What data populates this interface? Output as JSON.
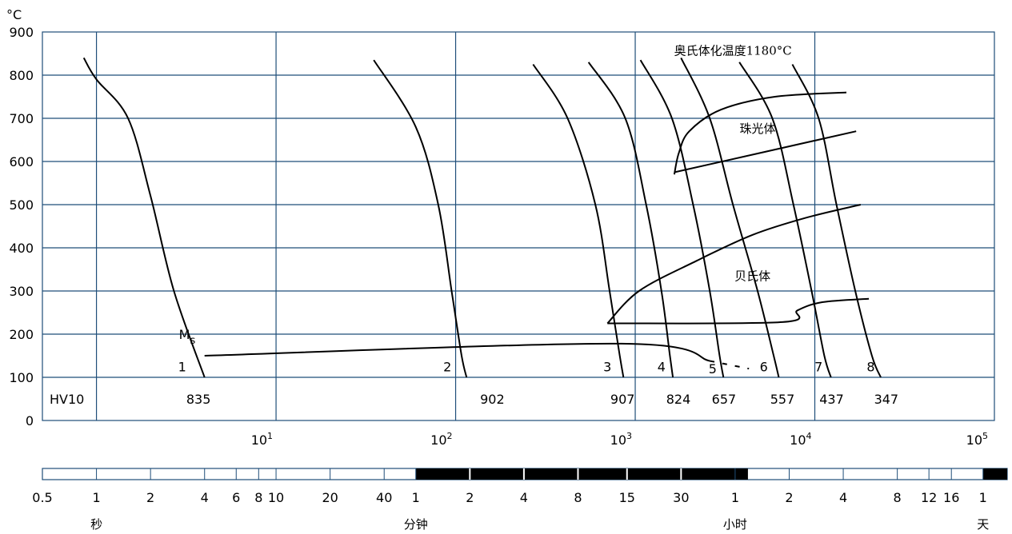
{
  "chart_data": {
    "type": "line",
    "title": "奥氏体化温度1180°C",
    "ylabel": "°C",
    "ylim": [
      0,
      900
    ],
    "y_ticks": [
      "0",
      "100",
      "200",
      "300",
      "400",
      "500",
      "600",
      "700",
      "800",
      "900"
    ],
    "x_scale": "log",
    "xlim": [
      0.5,
      100000
    ],
    "x_ticks": [
      {
        "value": 10,
        "base": "10",
        "exp": "1"
      },
      {
        "value": 100,
        "base": "10",
        "exp": "2"
      },
      {
        "value": 1000,
        "base": "10",
        "exp": "3"
      },
      {
        "value": 10000,
        "base": "10",
        "exp": "4"
      },
      {
        "value": 100000,
        "base": "10",
        "exp": "5"
      }
    ],
    "hardness_row": {
      "label": "HV10",
      "values": [
        {
          "t": 3.7,
          "text": "835"
        },
        {
          "t": 160,
          "text": "902"
        },
        {
          "t": 850,
          "text": "907"
        },
        {
          "t": 1740,
          "text": "824"
        },
        {
          "t": 3120,
          "text": "657"
        },
        {
          "t": 6600,
          "text": "557"
        },
        {
          "t": 12400,
          "text": "437"
        },
        {
          "t": 25000,
          "text": "347"
        }
      ]
    },
    "cooling_curves": [
      {
        "label": "1",
        "label_at": [
          3.0,
          125
        ],
        "points": [
          [
            0.85,
            840
          ],
          [
            1.0,
            790
          ],
          [
            1.5,
            700
          ],
          [
            2.0,
            520
          ],
          [
            2.7,
            300
          ],
          [
            4.0,
            100
          ]
        ]
      },
      {
        "label": "2",
        "label_at": [
          90,
          125
        ],
        "points": [
          [
            35,
            835
          ],
          [
            60,
            680
          ],
          [
            80,
            500
          ],
          [
            95,
            300
          ],
          [
            108,
            150
          ],
          [
            115,
            100
          ]
        ]
      },
      {
        "label": "3",
        "label_at": [
          700,
          125
        ],
        "points": [
          [
            270,
            825
          ],
          [
            420,
            700
          ],
          [
            600,
            500
          ],
          [
            720,
            300
          ],
          [
            820,
            150
          ],
          [
            860,
            100
          ]
        ]
      },
      {
        "label": "4",
        "label_at": [
          1400,
          125
        ],
        "points": [
          [
            550,
            830
          ],
          [
            880,
            700
          ],
          [
            1150,
            500
          ],
          [
            1400,
            300
          ],
          [
            1560,
            150
          ],
          [
            1620,
            100
          ]
        ]
      },
      {
        "label": "5",
        "label_at": [
          2700,
          120
        ],
        "points": [
          [
            1070,
            835
          ],
          [
            1600,
            700
          ],
          [
            2100,
            500
          ],
          [
            2600,
            300
          ],
          [
            2950,
            150
          ],
          [
            3100,
            100
          ]
        ]
      },
      {
        "label": "6",
        "label_at": [
          5200,
          125
        ],
        "points": [
          [
            1800,
            840
          ],
          [
            2600,
            700
          ],
          [
            3500,
            500
          ],
          [
            4800,
            300
          ],
          [
            5900,
            150
          ],
          [
            6300,
            100
          ]
        ]
      },
      {
        "label": "7",
        "label_at": [
          10500,
          125
        ],
        "points": [
          [
            3800,
            830
          ],
          [
            5800,
            700
          ],
          [
            7600,
            500
          ],
          [
            9600,
            300
          ],
          [
            11300,
            150
          ],
          [
            12300,
            100
          ]
        ]
      },
      {
        "label": "8",
        "label_at": [
          20500,
          125
        ],
        "points": [
          [
            7500,
            825
          ],
          [
            10500,
            700
          ],
          [
            13200,
            500
          ],
          [
            16800,
            300
          ],
          [
            20800,
            150
          ],
          [
            23300,
            100
          ]
        ]
      }
    ],
    "boundaries": [
      {
        "name": "ms-line",
        "points": [
          [
            4.0,
            150
          ],
          [
            840,
            178
          ],
          [
            2600,
            138
          ]
        ]
      },
      {
        "name": "ms-dash",
        "dashed": true,
        "points": [
          [
            2600,
            138
          ],
          [
            4300,
            120
          ]
        ]
      },
      {
        "name": "pearlite-start",
        "points": [
          [
            1650,
            570
          ],
          [
            1750,
            620
          ],
          [
            2000,
            670
          ],
          [
            3000,
            720
          ],
          [
            6000,
            750
          ],
          [
            15000,
            760
          ]
        ]
      },
      {
        "name": "pearlite-finish",
        "points": [
          [
            1650,
            575
          ],
          [
            17000,
            670
          ]
        ]
      },
      {
        "name": "bainite-start",
        "points": [
          [
            700,
            225
          ],
          [
            1050,
            300
          ],
          [
            2200,
            370
          ],
          [
            4500,
            430
          ],
          [
            9000,
            470
          ],
          [
            18000,
            500
          ]
        ]
      },
      {
        "name": "bainite-finish",
        "points": [
          [
            700,
            225
          ],
          [
            6600,
            228
          ],
          [
            8000,
            255
          ],
          [
            11000,
            274
          ],
          [
            20000,
            282
          ]
        ]
      }
    ],
    "annotations": [
      {
        "text": "奥氏体化温度1180°C",
        "t": 3500,
        "temp": 858
      },
      {
        "text": "珠光体",
        "t": 4800,
        "temp": 678
      },
      {
        "text": "贝氏体",
        "t": 4500,
        "temp": 336
      },
      {
        "text": "M",
        "sub": "s",
        "t": 3.2,
        "temp": 200
      }
    ],
    "time_bar": {
      "labels": [
        {
          "t": 0.5,
          "text": "0.5"
        },
        {
          "t": 1,
          "text": "1"
        },
        {
          "t": 2,
          "text": "2"
        },
        {
          "t": 4,
          "text": "4"
        },
        {
          "t": 6,
          "text": "6"
        },
        {
          "t": 8,
          "text": "8"
        },
        {
          "t": 10,
          "text": "10"
        },
        {
          "t": 20,
          "text": "20"
        },
        {
          "t": 40,
          "text": "40"
        },
        {
          "t": 60,
          "text": "1"
        },
        {
          "t": 120,
          "text": "2"
        },
        {
          "t": 240,
          "text": "4"
        },
        {
          "t": 480,
          "text": "8"
        },
        {
          "t": 900,
          "text": "15"
        },
        {
          "t": 1800,
          "text": "30"
        },
        {
          "t": 3600,
          "text": "1"
        },
        {
          "t": 7200,
          "text": "2"
        },
        {
          "t": 14400,
          "text": "4"
        },
        {
          "t": 28800,
          "text": "8"
        },
        {
          "t": 43200,
          "text": "12"
        },
        {
          "t": 57600,
          "text": "16"
        },
        {
          "t": 86400,
          "text": "1"
        }
      ],
      "units": [
        {
          "t": 1,
          "text": "秒"
        },
        {
          "t": 60,
          "text": "分钟"
        },
        {
          "t": 3600,
          "text": "小时"
        },
        {
          "t": 86400,
          "text": "天"
        }
      ],
      "black_segments": [
        [
          60,
          3600
        ],
        [
          86400,
          100000
        ]
      ],
      "grid": "on",
      "legend": "none"
    }
  }
}
